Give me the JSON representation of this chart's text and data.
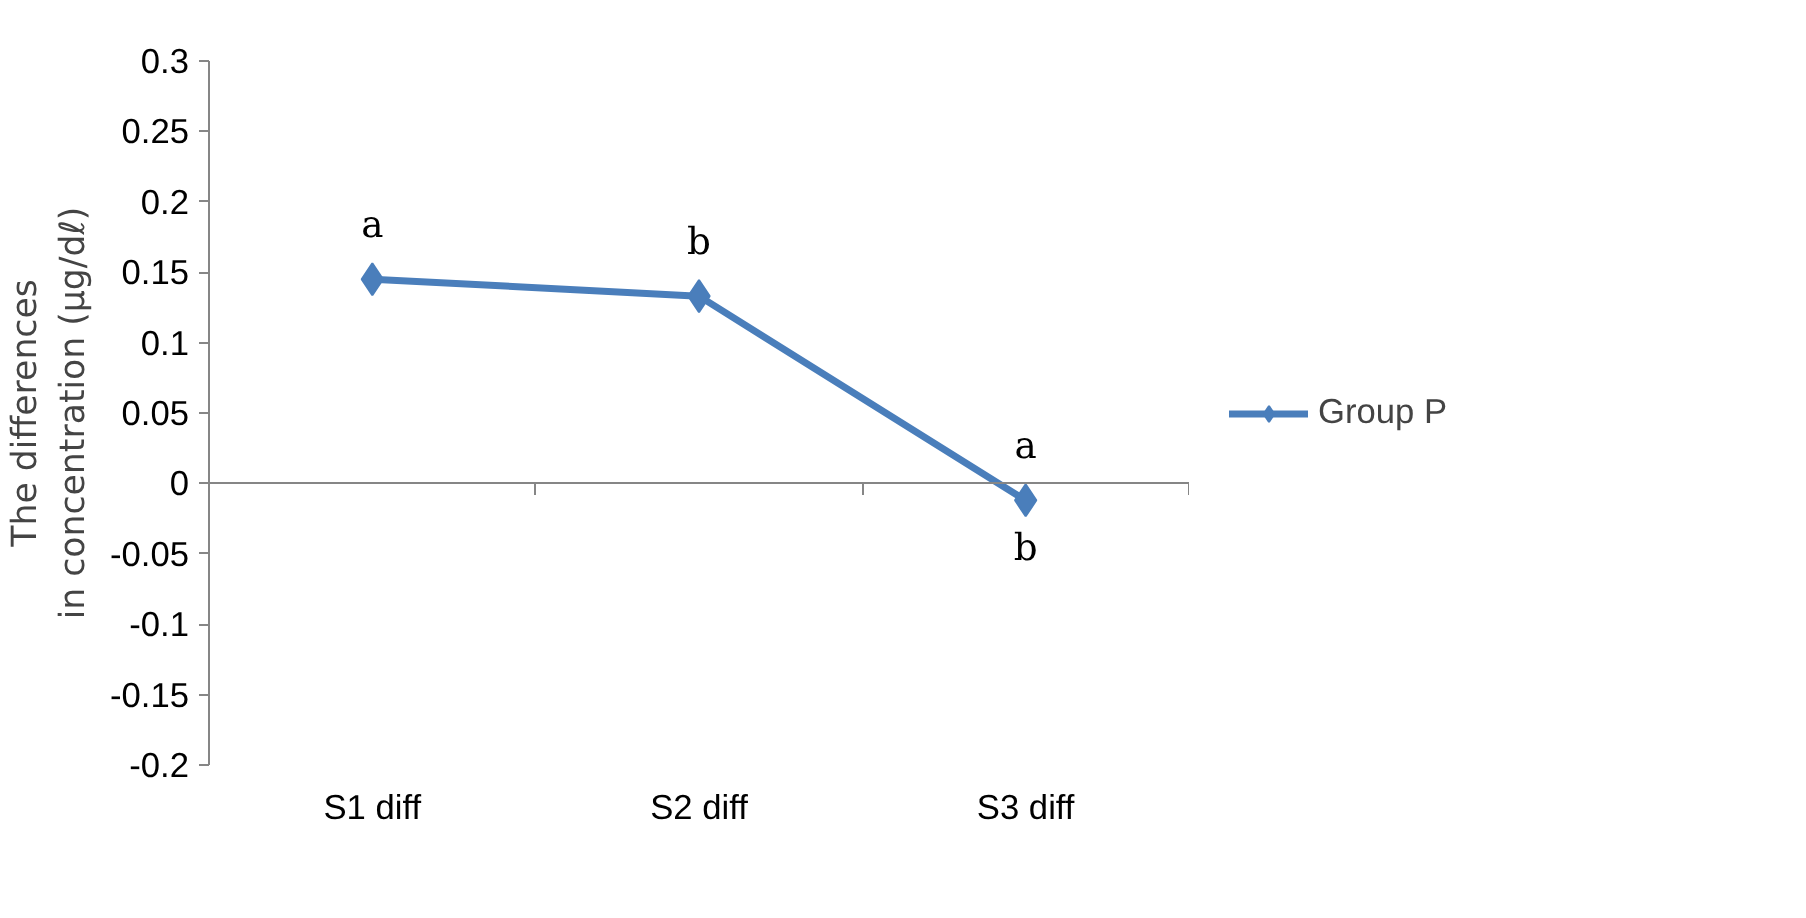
{
  "chart_data": {
    "type": "line",
    "ylabel": "The differences\nin concentration (μg/dℓ)",
    "categories": [
      "S1 diff",
      "S2 diff",
      "S3 diff"
    ],
    "series": [
      {
        "name": "Group P",
        "color": "#4a7ebb",
        "values": [
          0.145,
          0.133,
          -0.012
        ]
      }
    ],
    "ylim": [
      -0.2,
      0.3
    ],
    "yticks": [
      {
        "value": -0.2,
        "label": "-0.2"
      },
      {
        "value": -0.15,
        "label": "-0.15"
      },
      {
        "value": -0.1,
        "label": "-0.1"
      },
      {
        "value": -0.05,
        "label": "-0.05"
      },
      {
        "value": 0,
        "label": "0"
      },
      {
        "value": 0.05,
        "label": "0.05"
      },
      {
        "value": 0.1,
        "label": "0.1"
      },
      {
        "value": 0.15,
        "label": "0.15"
      },
      {
        "value": 0.2,
        "label": "0.2"
      },
      {
        "value": 0.25,
        "label": "0.25"
      },
      {
        "value": 0.3,
        "label": "0.3"
      }
    ],
    "annotations": [
      "a",
      "b",
      "a",
      "b"
    ],
    "marker": "diamond",
    "legend": "right"
  }
}
